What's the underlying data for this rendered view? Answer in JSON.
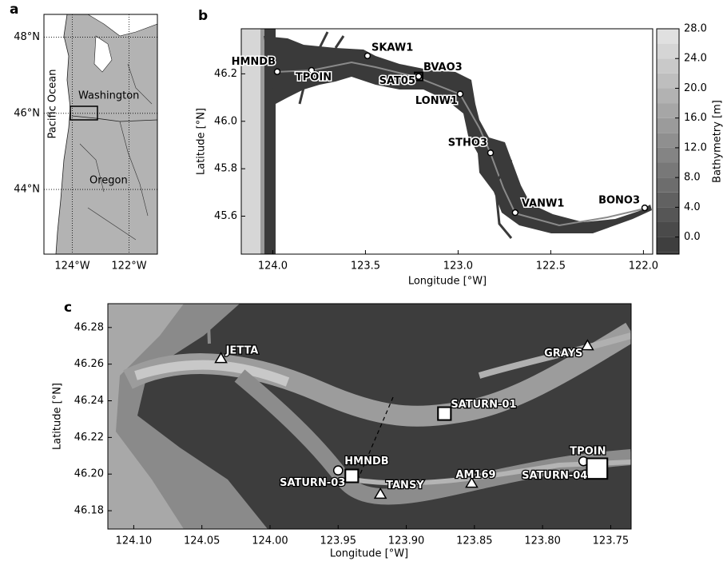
{
  "panels": {
    "a": {
      "letter": "a",
      "xlim": [
        125,
        121
      ],
      "ylim": [
        42.3,
        48.6
      ],
      "xticks": [
        {
          "value": 124,
          "label": "124°W"
        },
        {
          "value": 122,
          "label": "122°W"
        }
      ],
      "yticks": [
        {
          "value": 48,
          "label": "48°N"
        },
        {
          "value": 46,
          "label": "46°N"
        },
        {
          "value": 44,
          "label": "44°N"
        }
      ],
      "regions": [
        "Washington",
        "Oregon",
        "Pacific Ocean"
      ]
    },
    "b": {
      "letter": "b",
      "xlabel": "Longitude [°W]",
      "ylabel": "Latitude [°N]",
      "xlim": [
        124.17,
        121.95
      ],
      "ylim": [
        45.44,
        46.39
      ],
      "xticks": [
        {
          "value": 124,
          "label": "124.0"
        },
        123.5,
        {
          "value": 123,
          "label": "123.0"
        },
        122.5,
        {
          "value": 122,
          "label": "122.0"
        }
      ],
      "yticks": [
        46.2,
        {
          "value": 46,
          "label": "46.0"
        },
        45.8,
        45.6
      ],
      "colorbar": {
        "label": "Bathymetry [m]",
        "lim": [
          -2.3,
          28
        ],
        "ticks": [
          {
            "value": 28,
            "label": "28.0"
          },
          {
            "value": 24,
            "label": "24.0"
          },
          {
            "value": 20,
            "label": "20.0"
          },
          {
            "value": 16,
            "label": "16.0"
          },
          {
            "value": 12,
            "label": "12.0"
          },
          {
            "value": 8,
            "label": "8.0"
          },
          {
            "value": 4,
            "label": "4.0"
          },
          {
            "value": 0,
            "label": "0.0"
          }
        ]
      },
      "stations": [
        {
          "name": "HMNDB",
          "lon": 123.976,
          "lat": 46.209,
          "marker": "circle"
        },
        {
          "name": "TPOIN",
          "lon": 123.791,
          "lat": 46.215,
          "marker": "circle"
        },
        {
          "name": "SKAW1",
          "lon": 123.489,
          "lat": 46.276,
          "marker": "circle"
        },
        {
          "name": "SAT05",
          "lon": 123.213,
          "lat": 46.189,
          "marker": "square"
        },
        {
          "name": "BVAO3",
          "lon": 123.213,
          "lat": 46.189,
          "marker": "circle"
        },
        {
          "name": "LONW1",
          "lon": 122.989,
          "lat": 46.115,
          "marker": "circle"
        },
        {
          "name": "STHO3",
          "lon": 122.825,
          "lat": 45.867,
          "marker": "circle"
        },
        {
          "name": "VANW1",
          "lon": 122.692,
          "lat": 45.615,
          "marker": "circle"
        },
        {
          "name": "BONO3",
          "lon": 121.993,
          "lat": 45.635,
          "marker": "circle"
        }
      ]
    },
    "c": {
      "letter": "c",
      "xlabel": "Longitude [°W]",
      "ylabel": "Latitude [°N]",
      "xlim": [
        124.119,
        123.735
      ],
      "ylim": [
        46.17,
        46.293
      ],
      "xticks": [
        {
          "value": 124.1,
          "label": "124.10"
        },
        124.05,
        {
          "value": 124,
          "label": "124.00"
        },
        123.95,
        {
          "value": 123.9,
          "label": "123.90"
        },
        123.85,
        {
          "value": 123.8,
          "label": "123.80"
        },
        123.75
      ],
      "yticks": [
        46.28,
        46.26,
        46.24,
        46.22,
        {
          "value": 46.2,
          "label": "46.20"
        },
        46.18
      ],
      "stations": [
        {
          "name": "JETTA",
          "lon": 124.036,
          "lat": 46.263,
          "marker": "triangle"
        },
        {
          "name": "GRAYS",
          "lon": 123.767,
          "lat": 46.27,
          "marker": "triangle"
        },
        {
          "name": "SATURN-01",
          "lon": 123.872,
          "lat": 46.233,
          "marker": "square"
        },
        {
          "name": "HMNDB",
          "lon": 123.95,
          "lat": 46.202,
          "marker": "circle"
        },
        {
          "name": "SATURN-03",
          "lon": 123.94,
          "lat": 46.199,
          "marker": "square"
        },
        {
          "name": "TANSY",
          "lon": 123.919,
          "lat": 46.189,
          "marker": "triangle"
        },
        {
          "name": "AM169",
          "lon": 123.852,
          "lat": 46.195,
          "marker": "triangle"
        },
        {
          "name": "TPOIN",
          "lon": 123.77,
          "lat": 46.207,
          "marker": "circle"
        },
        {
          "name": "SATURN-04",
          "lon": 123.76,
          "lat": 46.203,
          "marker": "square"
        }
      ]
    }
  }
}
